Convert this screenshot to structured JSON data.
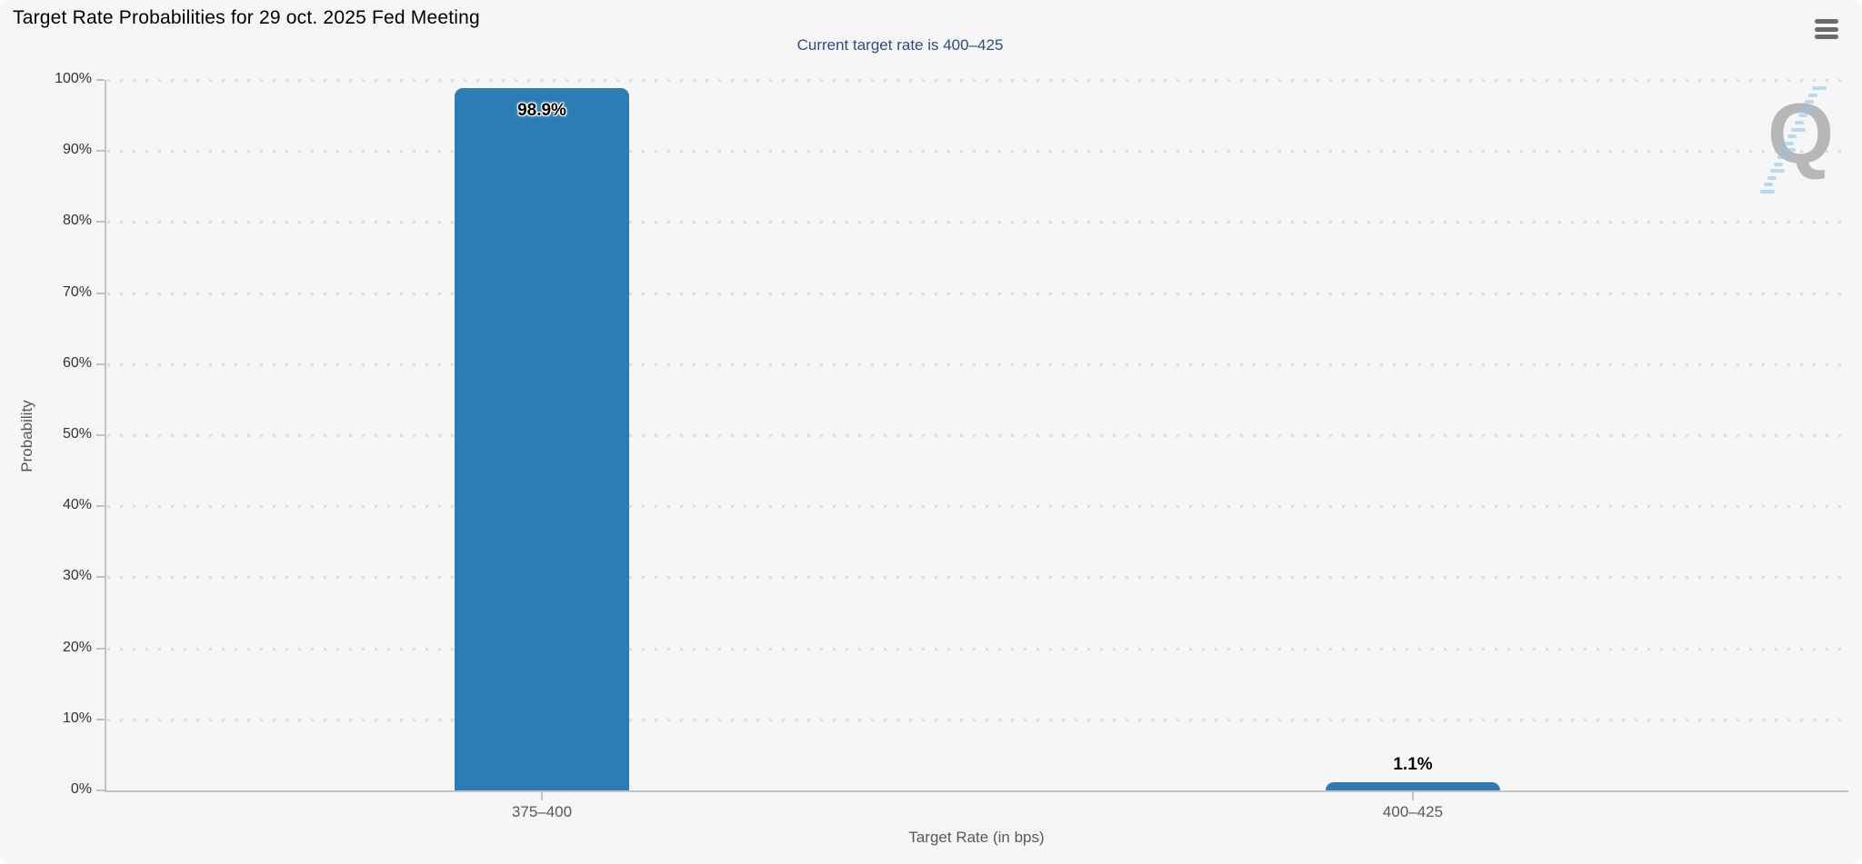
{
  "chart_data": {
    "type": "bar",
    "title": "Target Rate Probabilities for 29 oct. 2025 Fed Meeting",
    "subtitle": "Current target rate is 400–425",
    "xlabel": "Target Rate (in bps)",
    "ylabel": "Probability",
    "categories": [
      "375–400",
      "400–425"
    ],
    "values": [
      98.9,
      1.1
    ],
    "data_labels": [
      "98.9%",
      "1.1%"
    ],
    "ylim": [
      0,
      100
    ],
    "yticks": [
      "0%",
      "10%",
      "20%",
      "30%",
      "40%",
      "50%",
      "60%",
      "70%",
      "80%",
      "90%",
      "100%"
    ],
    "grid": "dotted-horizontal",
    "legend": "none",
    "colors": {
      "bar": "#2d7cb5",
      "subtitle_text": "#2e4d7e",
      "axis_line": "#c3c3c3",
      "grid_dot": "#dcdcdc",
      "ytick_label": "#333333",
      "category_label": "#595959",
      "background": "#f6f6f6"
    }
  },
  "watermark": {
    "letter": "Q"
  }
}
